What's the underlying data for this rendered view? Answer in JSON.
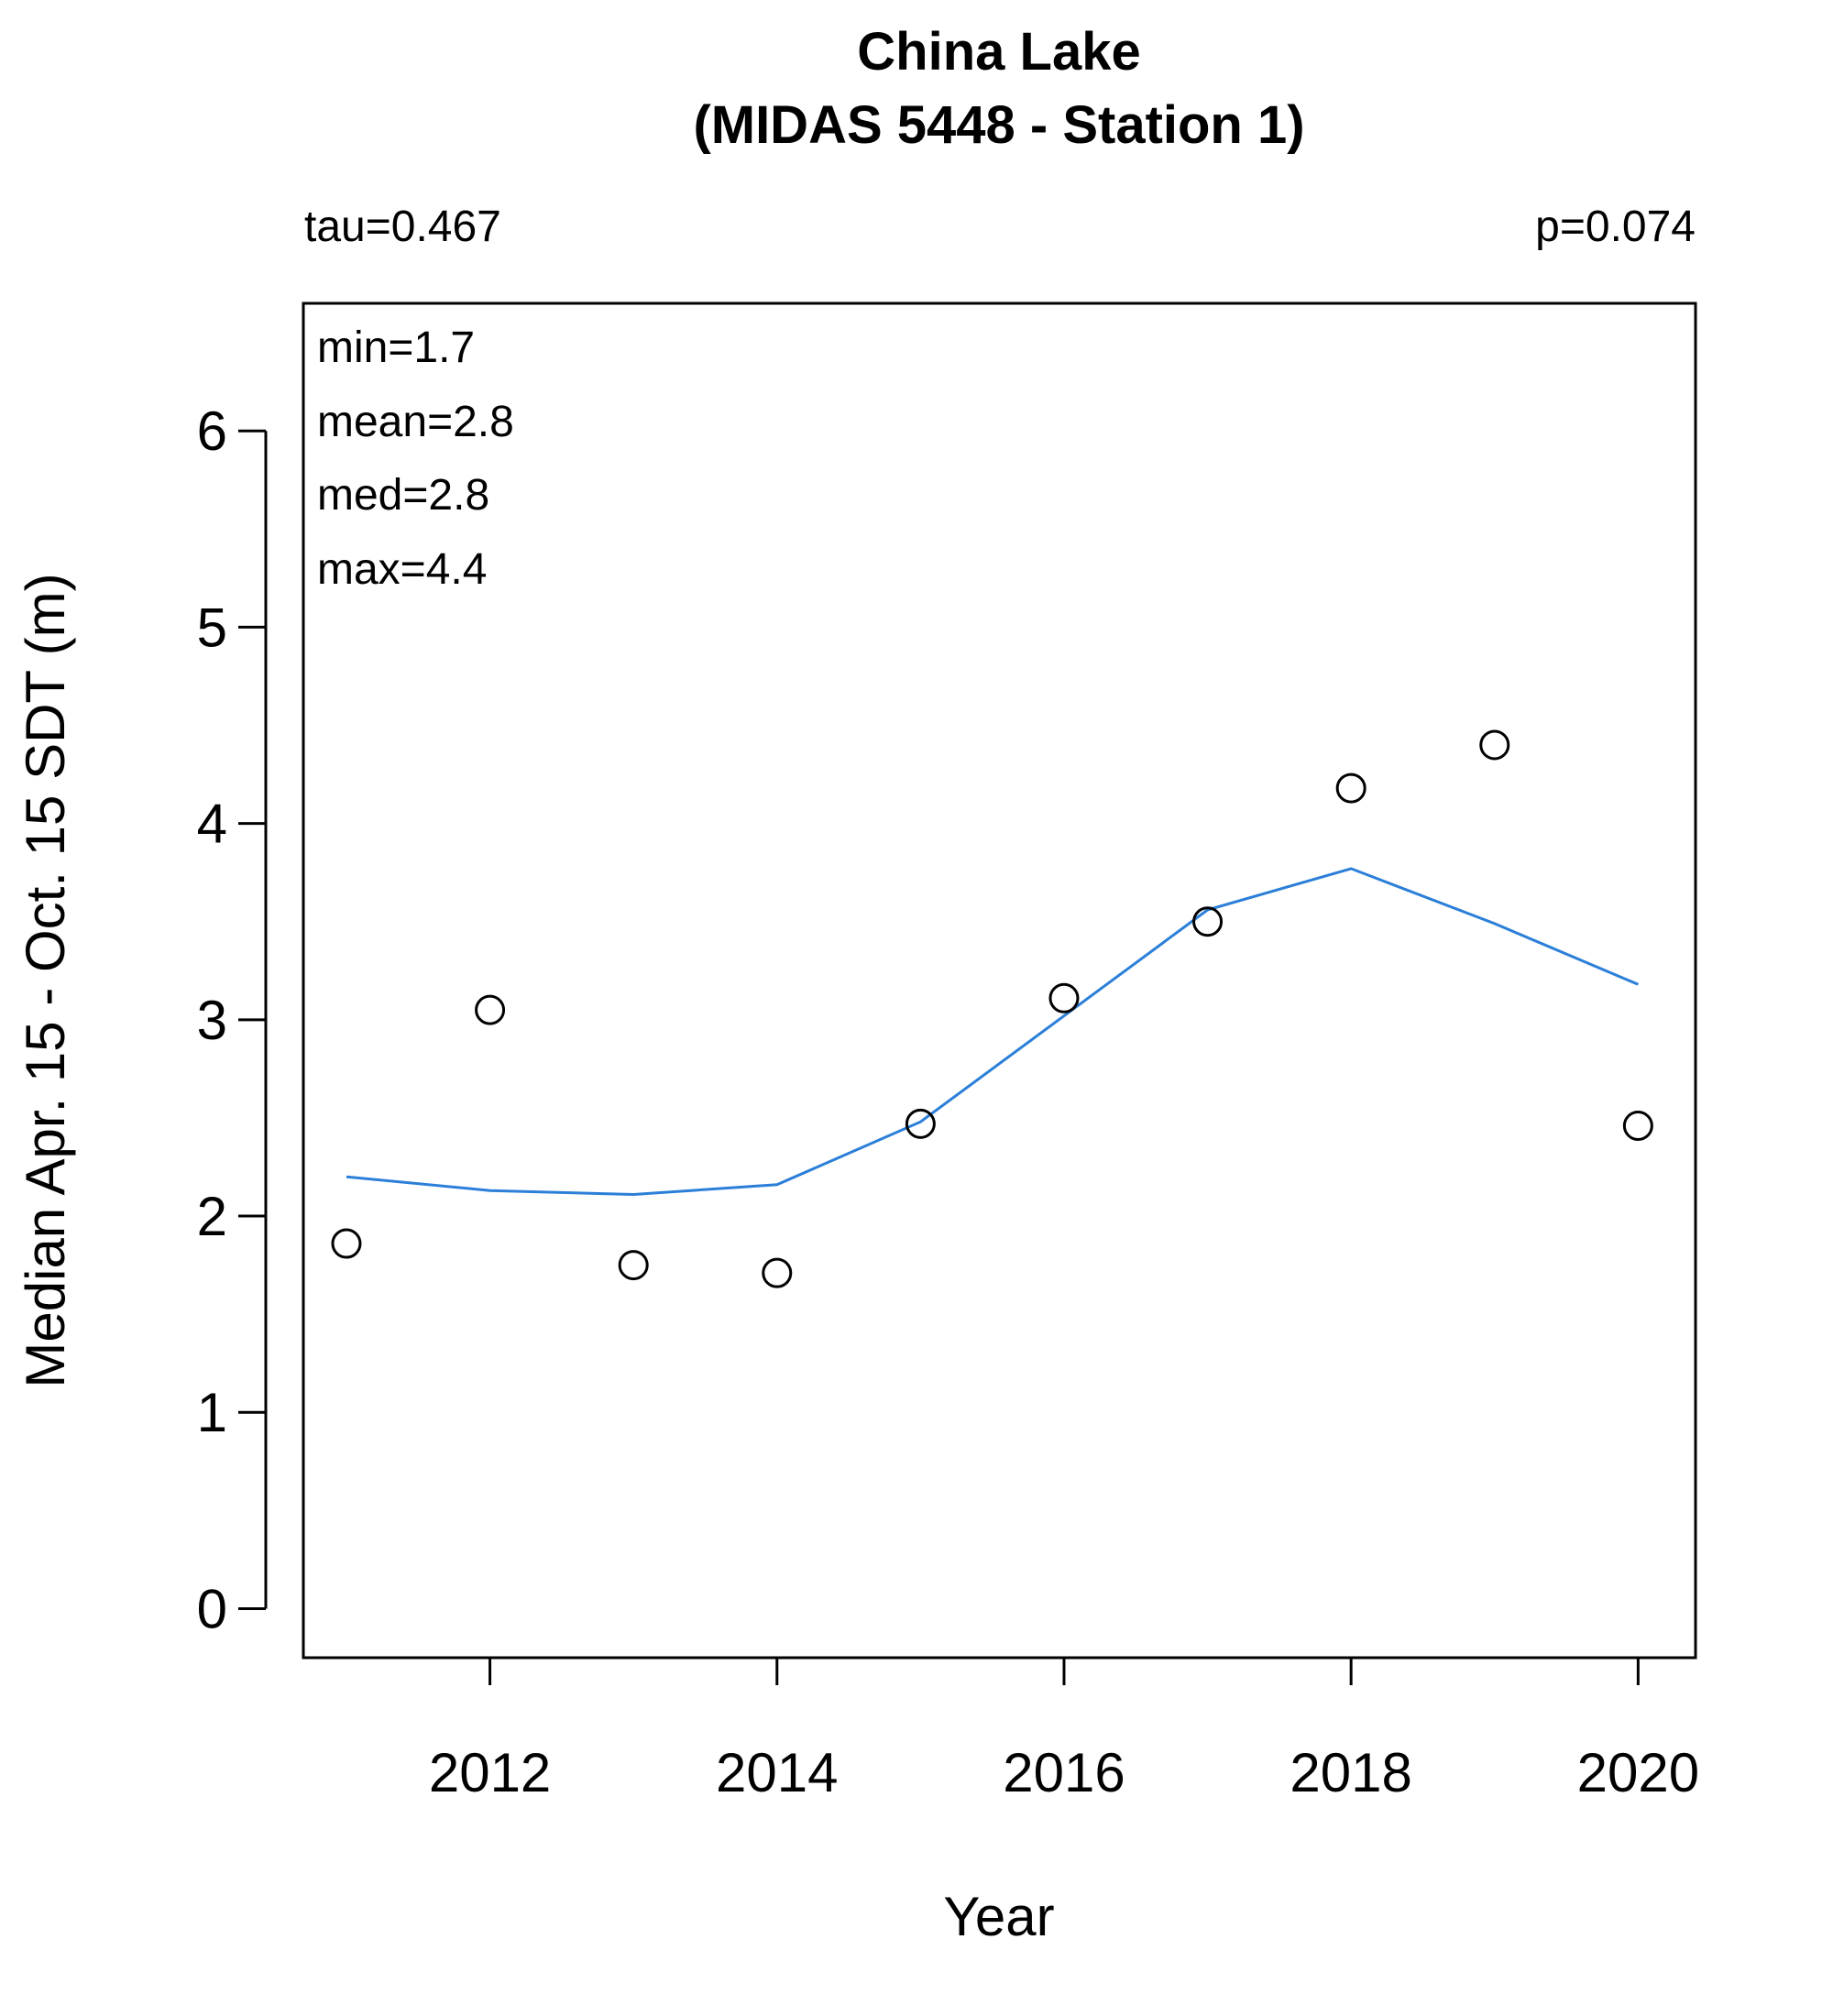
{
  "chart_data": {
    "type": "scatter",
    "title": "China Lake",
    "subtitle": "(MIDAS 5448 - Station 1)",
    "xlabel": "Year",
    "ylabel": "Median Apr. 15 - Oct. 15 SDT (m)",
    "xlim": [
      2010.7,
      2020.4
    ],
    "ylim": [
      -0.25,
      6.65
    ],
    "x_ticks": [
      2012,
      2014,
      2016,
      2018,
      2020
    ],
    "y_ticks": [
      0,
      1,
      2,
      3,
      4,
      5,
      6
    ],
    "grid": false,
    "legend": "none",
    "annotations": {
      "tau": "tau=0.467",
      "p": "p=0.074",
      "stats": [
        "min=1.7",
        "mean=2.8",
        "med=2.8",
        "max=4.4"
      ]
    },
    "points": {
      "x": [
        2011,
        2012,
        2013,
        2014,
        2015,
        2016,
        2017,
        2018,
        2019,
        2020
      ],
      "y": [
        1.86,
        3.05,
        1.75,
        1.71,
        2.47,
        3.11,
        3.5,
        4.18,
        4.4,
        2.46
      ]
    },
    "trend": {
      "x": [
        2011,
        2012,
        2013,
        2014,
        2015,
        2016,
        2017,
        2018,
        2019,
        2020
      ],
      "y": [
        2.2,
        2.13,
        2.11,
        2.16,
        2.48,
        3.02,
        3.56,
        3.77,
        3.49,
        3.18
      ]
    },
    "colors": {
      "trend": "#2b7fd8",
      "points": "#000000",
      "axes": "#000000"
    }
  }
}
